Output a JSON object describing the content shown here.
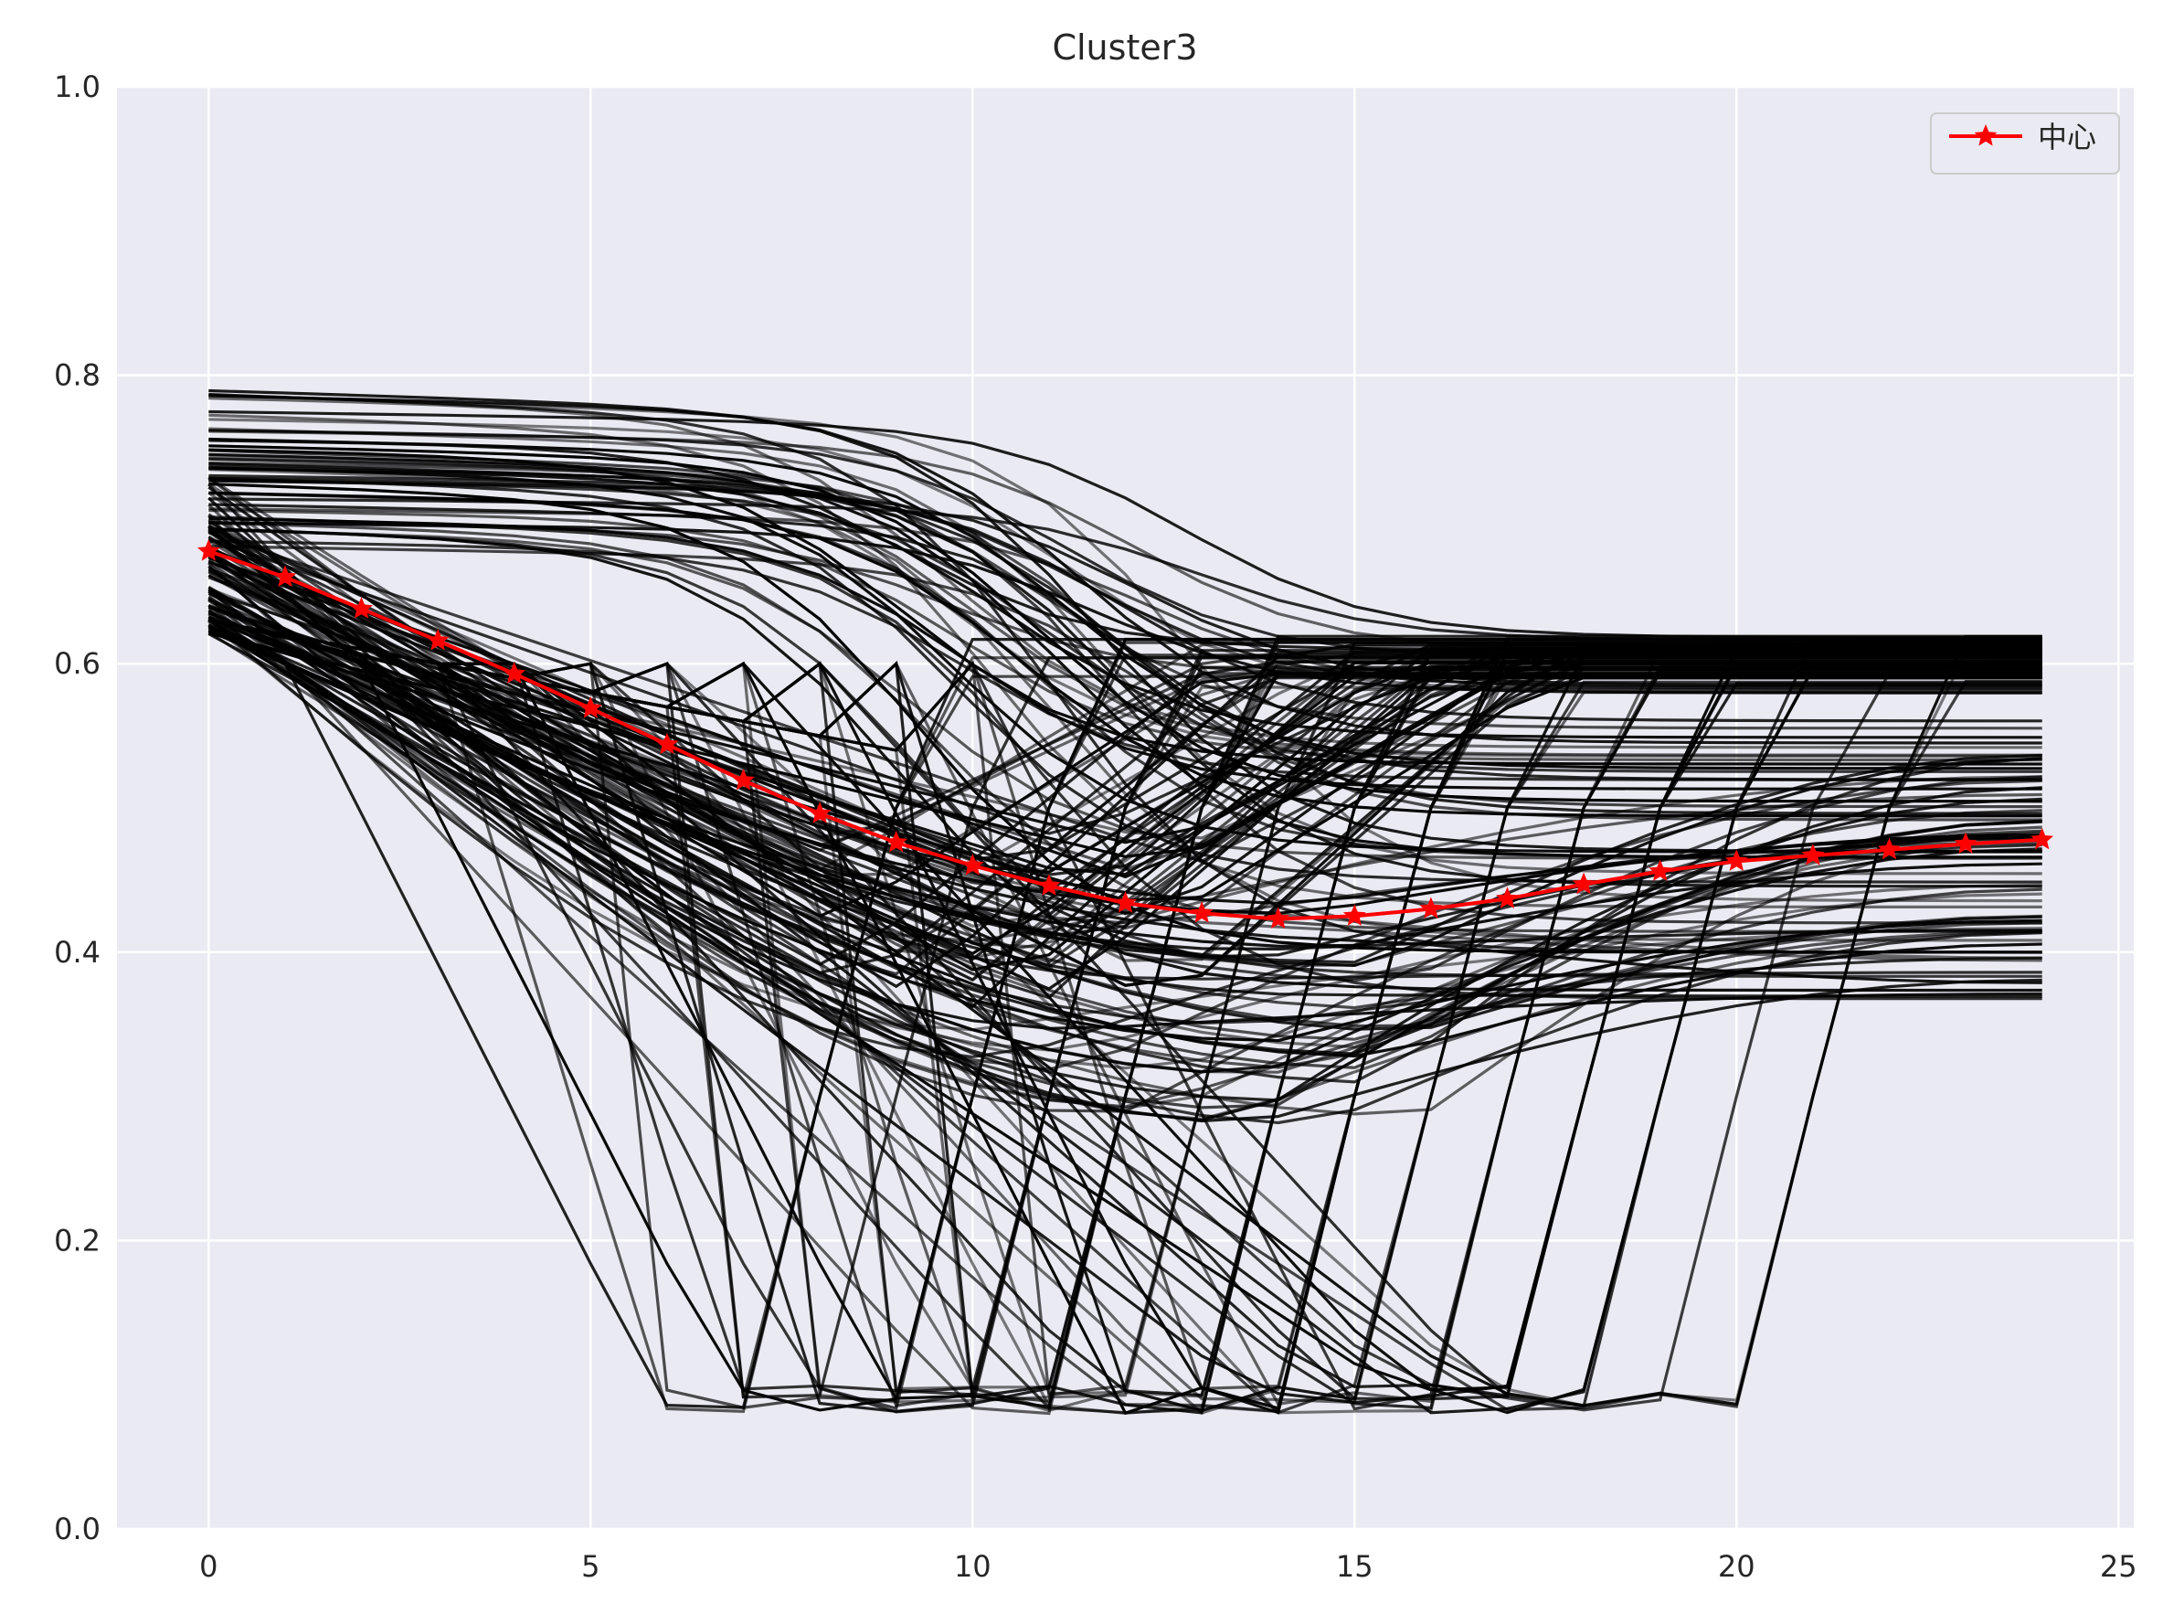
{
  "chart_data": {
    "type": "line",
    "title": "Cluster3",
    "xlabel": "",
    "ylabel": "",
    "xlim": [
      -1.2,
      25.2
    ],
    "ylim": [
      0.0,
      1.0
    ],
    "xticks": [
      0,
      5,
      10,
      15,
      20,
      25
    ],
    "xtick_labels": [
      "0",
      "5",
      "10",
      "15",
      "20",
      "25"
    ],
    "yticks": [
      0.0,
      0.2,
      0.4,
      0.6,
      0.8,
      1.0
    ],
    "ytick_labels": [
      "0.0",
      "0.2",
      "0.4",
      "0.6",
      "0.8",
      "1.0"
    ],
    "grid": true,
    "legend_position": "top-right",
    "colors": {
      "background": "#eaeaf2",
      "grid": "#ffffff",
      "member_lines": "#000000",
      "centroid": "#ff0000"
    },
    "x": [
      0,
      1,
      2,
      3,
      4,
      5,
      6,
      7,
      8,
      9,
      10,
      11,
      12,
      13,
      14,
      15,
      16,
      17,
      18,
      19,
      20,
      21,
      22,
      23,
      24
    ],
    "series": [
      {
        "name": "中心",
        "color": "#ff0000",
        "marker": "star",
        "values": [
          0.678,
          0.66,
          0.638,
          0.616,
          0.593,
          0.569,
          0.544,
          0.519,
          0.496,
          0.476,
          0.46,
          0.446,
          0.434,
          0.427,
          0.423,
          0.425,
          0.43,
          0.437,
          0.447,
          0.456,
          0.463,
          0.467,
          0.471,
          0.475,
          0.478
        ]
      }
    ],
    "member_lines": {
      "color": "#000000",
      "count": 190
    }
  }
}
